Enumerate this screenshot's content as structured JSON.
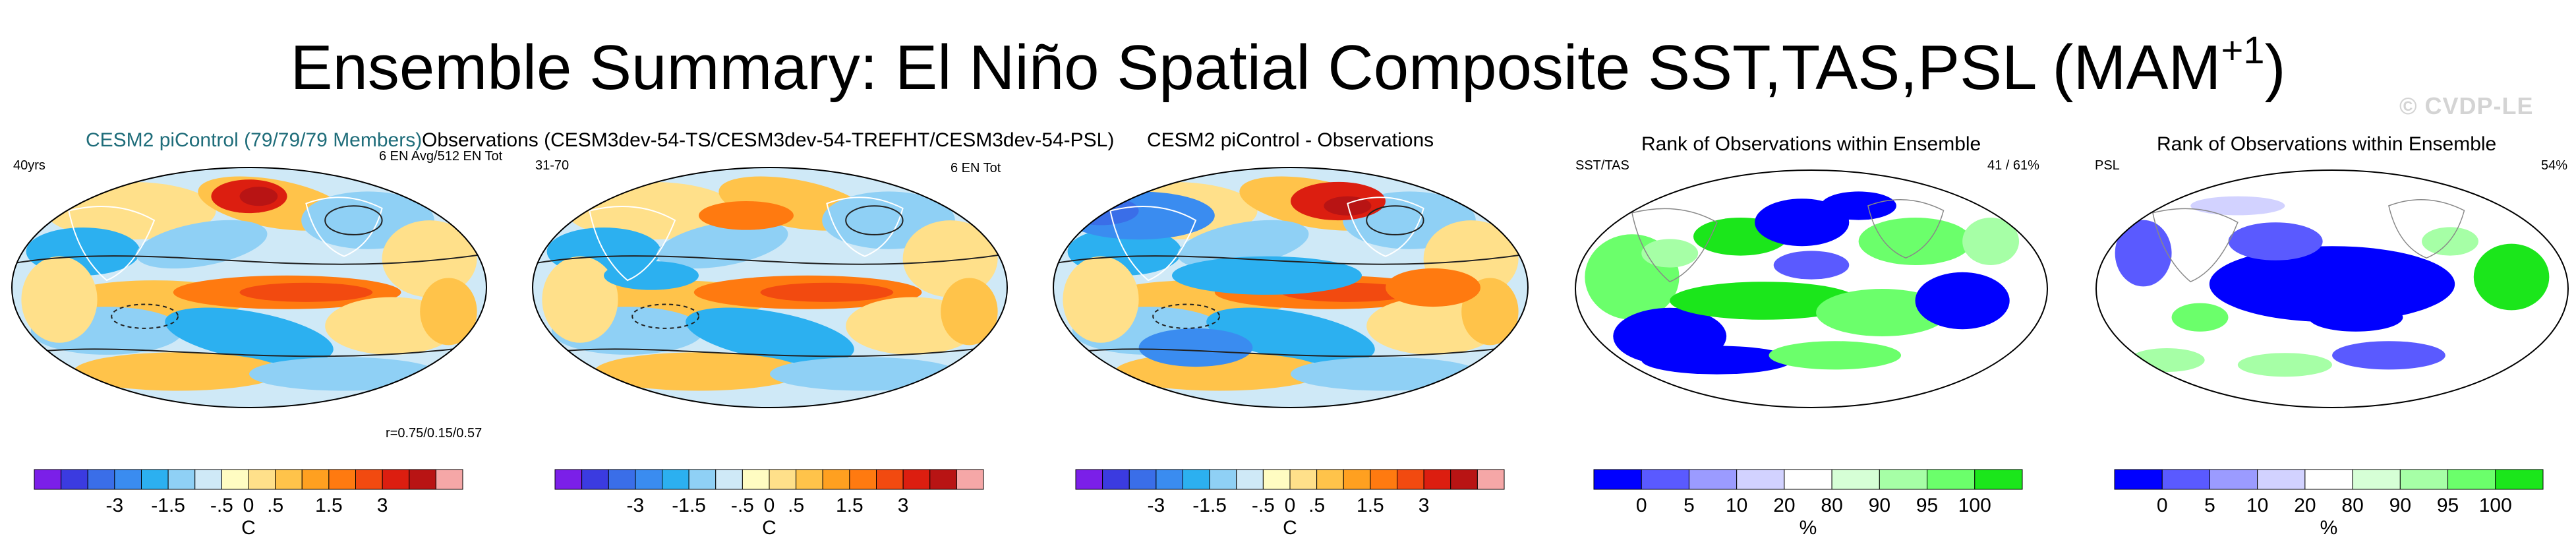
{
  "figure": {
    "title_main": "Ensemble Summary: El Niño Spatial Composite SST,TAS,PSL (MAM",
    "title_sup": "+1",
    "title_close": ")",
    "watermark": "© CVDP-LE"
  },
  "panels": [
    {
      "header": "CESM2 piControl (79/79/79 Members)",
      "left_label": "40yrs",
      "right_label": "6 EN Avg/512 EN Tot",
      "footnote": "r=0.75/0.15/0.57"
    },
    {
      "header": "Observations (CESM3dev-54-TS/CESM3dev-54-TREFHT/CESM3dev-54-PSL)",
      "left_label": "31-70",
      "right_label": "6 EN Tot"
    },
    {
      "header": "CESM2 piControl - Observations"
    },
    {
      "header": "Rank of Observations within Ensemble",
      "left_label": "SST/TAS",
      "right_label": "41 /  61%"
    },
    {
      "header": "Rank of Observations within Ensemble",
      "left_label": "PSL",
      "right_label": "54%"
    }
  ],
  "colors": {
    "temp_scale": [
      "#7b1fe8",
      "#3b3be0",
      "#3a6ee8",
      "#3a8cf0",
      "#2cb0f0",
      "#8fd0f5",
      "#cfe9f7",
      "#fffcc2",
      "#ffe08a",
      "#ffc34a",
      "#ffa020",
      "#ff7a10",
      "#f24a10",
      "#dc1e10",
      "#b81414",
      "#f5a7a7"
    ],
    "rank_scale": [
      "#0000ff",
      "#5a5aff",
      "#9b9bff",
      "#d2d2ff",
      "#ffffff",
      "#d6ffd6",
      "#a6ffa6",
      "#6bff6b",
      "#1be61b"
    ],
    "ocean_bg": "#cfe9f7"
  },
  "chart_data": [
    {
      "type": "heatmap",
      "title": "CESM2 piControl (79/79/79 Members)",
      "colorbar": {
        "tick_labels": [
          "-3",
          "-1.5",
          "-.5",
          "0",
          ".5",
          "1.5",
          "3"
        ],
        "unit": "C"
      }
    },
    {
      "type": "heatmap",
      "title": "Observations (CESM3dev-54-TS/CESM3dev-54-TREFHT/CESM3dev-54-PSL)",
      "colorbar": {
        "tick_labels": [
          "-3",
          "-1.5",
          "-.5",
          "0",
          ".5",
          "1.5",
          "3"
        ],
        "unit": "C"
      }
    },
    {
      "type": "heatmap",
      "title": "CESM2 piControl - Observations",
      "colorbar": {
        "tick_labels": [
          "-3",
          "-1.5",
          "-.5",
          "0",
          ".5",
          "1.5",
          "3"
        ],
        "unit": "C"
      }
    },
    {
      "type": "heatmap",
      "title": "Rank of Observations within Ensemble",
      "colorbar": {
        "tick_labels": [
          "0",
          "5",
          "10",
          "20",
          "80",
          "90",
          "95",
          "100"
        ],
        "unit": "%"
      }
    },
    {
      "type": "heatmap",
      "title": "Rank of Observations within Ensemble",
      "colorbar": {
        "tick_labels": [
          "0",
          "5",
          "10",
          "20",
          "80",
          "90",
          "95",
          "100"
        ],
        "unit": "%"
      }
    }
  ]
}
